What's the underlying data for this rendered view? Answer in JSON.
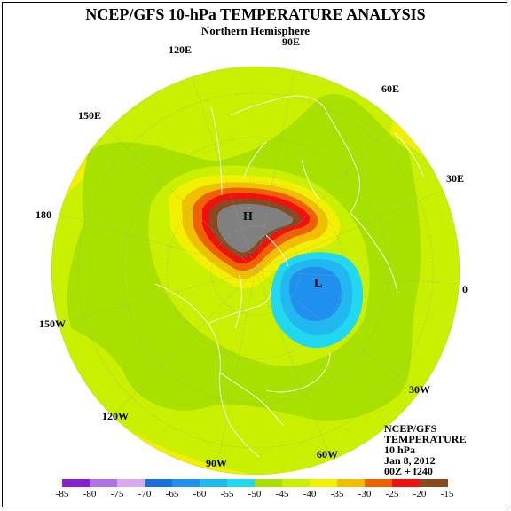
{
  "title": "NCEP/GFS 10-hPa TEMPERATURE ANALYSIS",
  "subtitle": "Northern Hemisphere",
  "longitude_labels": {
    "lon_90E": "90E",
    "lon_120E": "120E",
    "lon_60E": "60E",
    "lon_150E": "150E",
    "lon_30E": "30E",
    "lon_180": "180",
    "lon_0": "0",
    "lon_150W": "150W",
    "lon_30W": "30W",
    "lon_120W": "120W",
    "lon_60W": "60W",
    "lon_90W": "90W"
  },
  "pressure_centers": {
    "high": "H",
    "low": "L"
  },
  "info_block": {
    "line1": "NCEP/GFS",
    "line2": "TEMPERATURE",
    "line3": "10 hPa",
    "line4": "Jan 8, 2012",
    "line5": "00Z + f240"
  },
  "legend": {
    "labels": [
      "-85",
      "-80",
      "-75",
      "-70",
      "-65",
      "-60",
      "-55",
      "-50",
      "-45",
      "-40",
      "-35",
      "-30",
      "-25",
      "-20",
      "-15"
    ],
    "colors": [
      "#8a1fd0",
      "#b070e8",
      "#d8a8f0",
      "#1870e0",
      "#2090f0",
      "#20b8f0",
      "#20d8f0",
      "#a8e000",
      "#c8f000",
      "#f0f000",
      "#f0c000",
      "#f06000",
      "#f01010",
      "#8a4a20",
      "#808080"
    ]
  },
  "map_colors": {
    "gray": "#808080",
    "brown": "#8a4a20",
    "red": "#f01010",
    "orange": "#f06000",
    "lightorange": "#f0c000",
    "yellow": "#f0f000",
    "yellowgreen": "#c8f000",
    "green": "#a8e000",
    "cyan": "#20d8f0",
    "cyan2": "#20b8f0",
    "blue": "#2090f0",
    "coast": "#ffffff",
    "grid": "#a0a0a0"
  }
}
